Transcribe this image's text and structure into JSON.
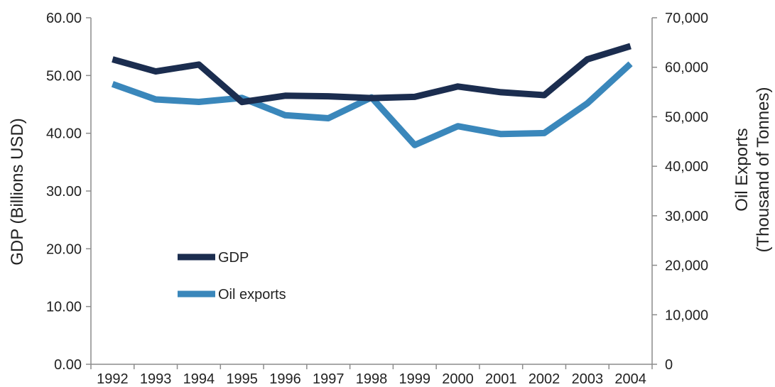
{
  "chart_data": {
    "type": "line",
    "title": "",
    "categories": [
      "1992",
      "1993",
      "1994",
      "1995",
      "1996",
      "1997",
      "1998",
      "1999",
      "2000",
      "2001",
      "2002",
      "2003",
      "2004"
    ],
    "series": [
      {
        "name": "GDP",
        "axis": "left",
        "color": "#1b2d4f",
        "values": [
          52.8,
          50.7,
          51.9,
          45.4,
          46.5,
          46.4,
          46.1,
          46.3,
          48.1,
          47.1,
          46.6,
          52.8,
          55.1
        ]
      },
      {
        "name": "Oil exports",
        "axis": "right",
        "color": "#3a87bb",
        "values": [
          56600,
          53500,
          53000,
          53800,
          50300,
          49700,
          53900,
          44300,
          48100,
          46500,
          46700,
          52700,
          60700
        ]
      }
    ],
    "left_axis": {
      "label": "GDP (Billions USD)",
      "ylim": [
        0,
        60
      ],
      "ticks": [
        0,
        10,
        20,
        30,
        40,
        50,
        60
      ],
      "tick_labels": [
        "0.00",
        "10.00",
        "20.00",
        "30.00",
        "40.00",
        "50.00",
        "60.00"
      ]
    },
    "right_axis": {
      "label_line1": "Oil Exports",
      "label_line2": "(Thousand of Tonnes)",
      "ylim": [
        0,
        70000
      ],
      "ticks": [
        0,
        10000,
        20000,
        30000,
        40000,
        50000,
        60000,
        70000
      ],
      "tick_labels": [
        "0",
        "10,000",
        "20,000",
        "30,000",
        "40,000",
        "50,000",
        "60,000",
        "70,000"
      ]
    },
    "grid": false,
    "legend": {
      "placement": "center-left",
      "entries": [
        "GDP",
        "Oil exports"
      ]
    }
  }
}
